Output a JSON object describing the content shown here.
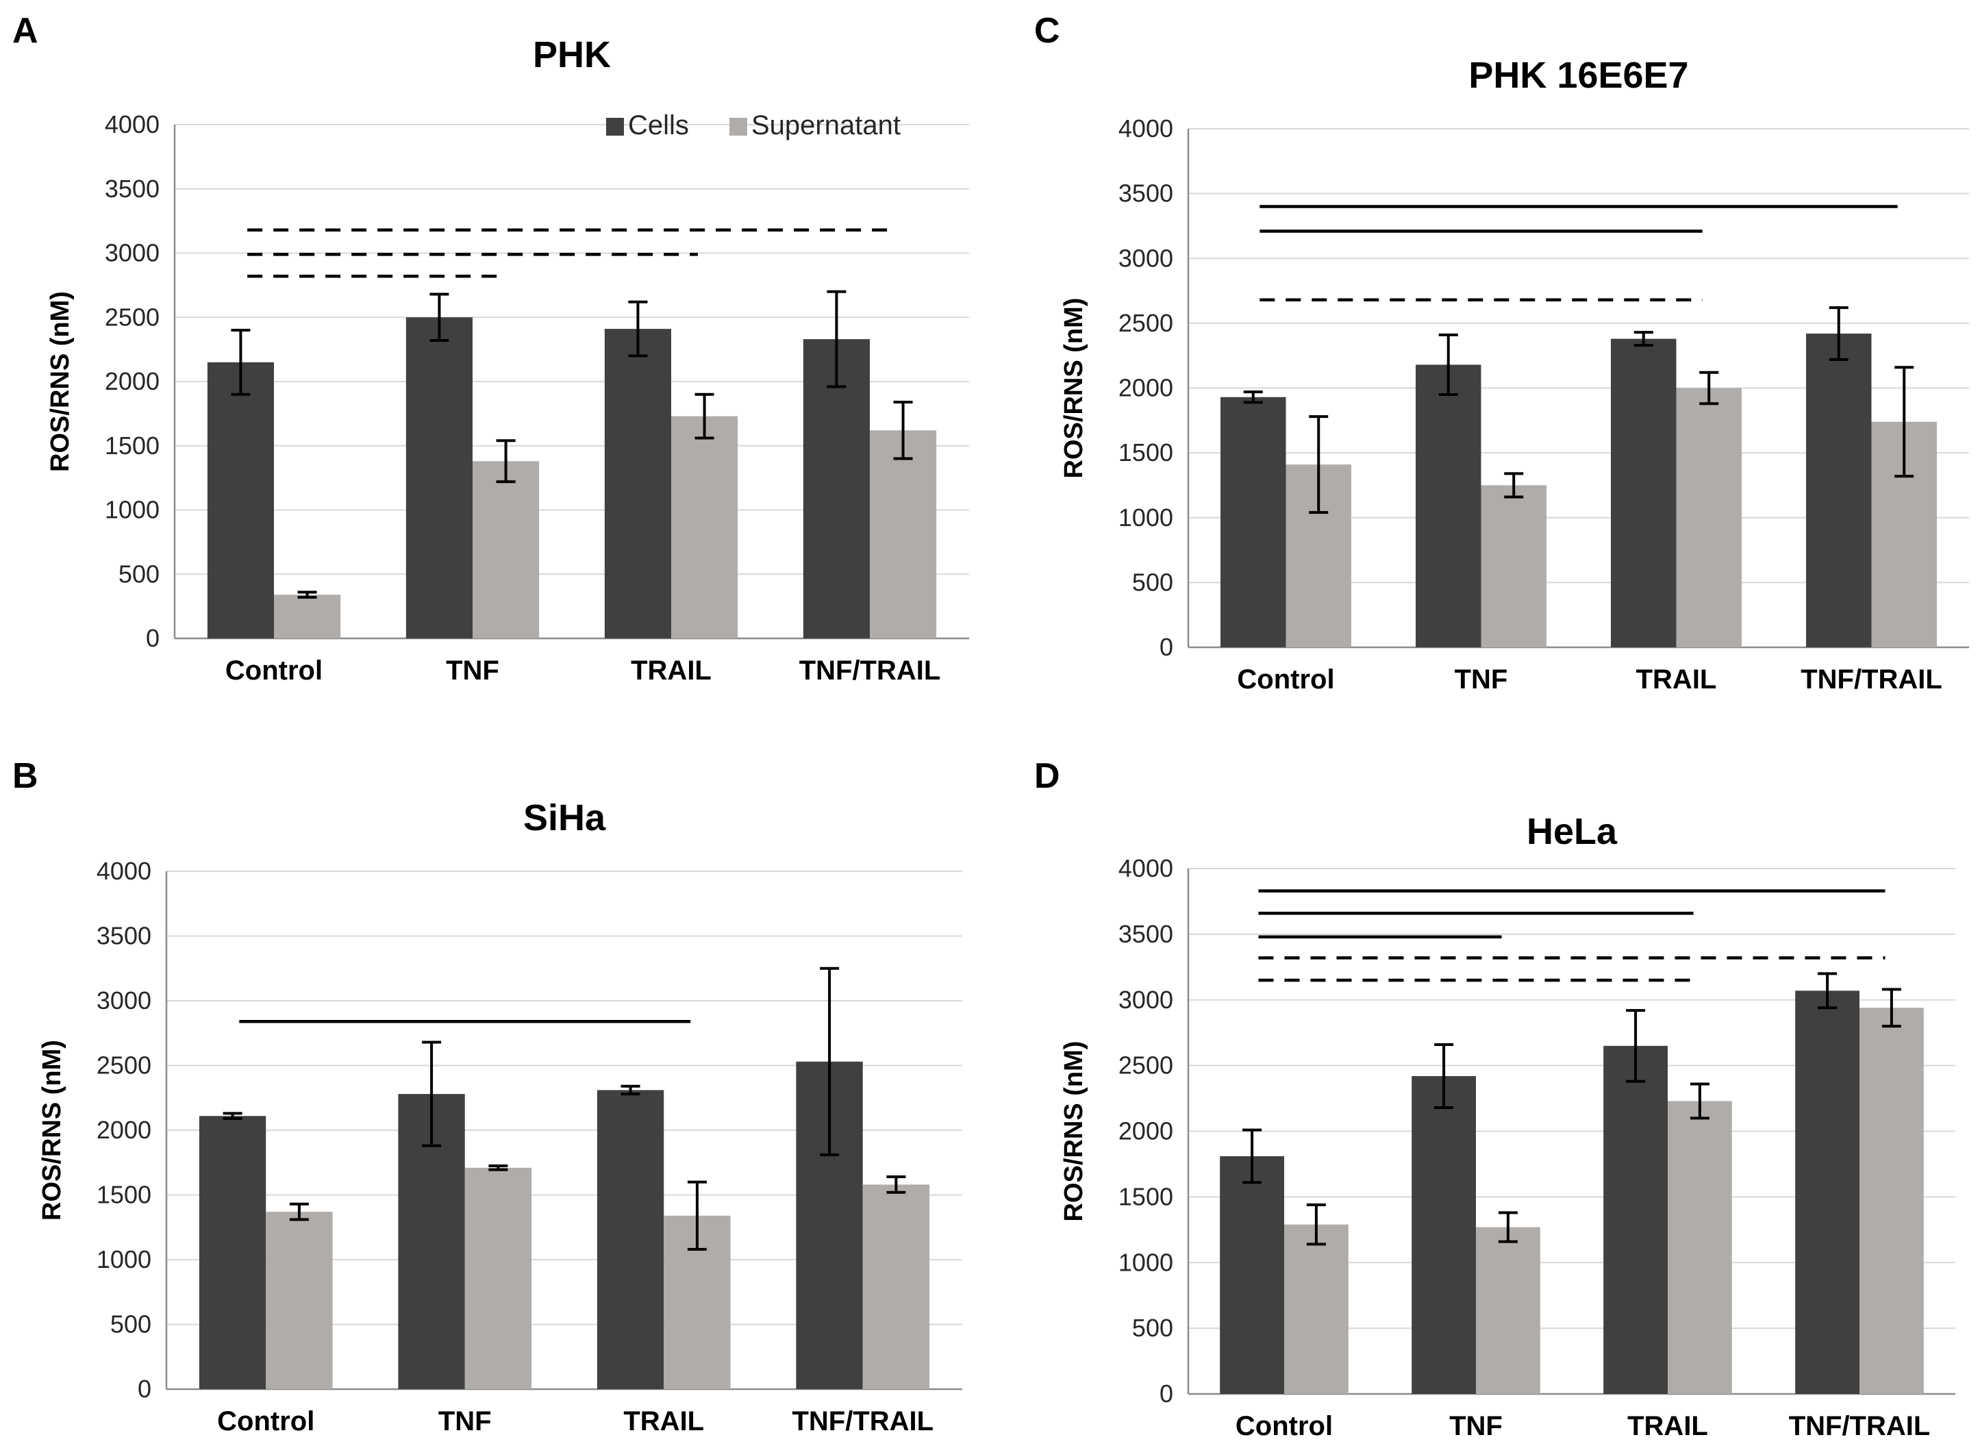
{
  "colors": {
    "cells": "#404040",
    "supernatant": "#b0aca9",
    "text": "#000000",
    "grid": "#d9d9d9"
  },
  "chart_data": [
    {
      "panel": "A",
      "type": "bar",
      "title": "PHK",
      "xlabel": "",
      "ylabel": "ROS/RNS (nM)",
      "ylim": [
        0,
        4000
      ],
      "yticks": [
        0,
        500,
        1000,
        1500,
        2000,
        2500,
        3000,
        3500,
        4000
      ],
      "grid": true,
      "legend": {
        "position": "top-right",
        "entries": [
          "Cells",
          "Supernatant"
        ]
      },
      "categories": [
        "Control",
        "TNF",
        "TRAIL",
        "TNF/TRAIL"
      ],
      "series": [
        {
          "name": "Cells",
          "values": [
            2150,
            2500,
            2410,
            2330
          ],
          "errors": [
            250,
            180,
            210,
            370
          ]
        },
        {
          "name": "Supernatant",
          "values": [
            340,
            1380,
            1730,
            1620
          ],
          "errors": [
            20,
            160,
            170,
            220
          ]
        }
      ],
      "significance": [
        {
          "style": "dashed",
          "y": 3180,
          "from": 0,
          "to": 3
        },
        {
          "style": "dashed",
          "y": 2990,
          "from": 0,
          "to": 2
        },
        {
          "style": "dashed",
          "y": 2820,
          "from": 0,
          "to": 1
        }
      ]
    },
    {
      "panel": "C",
      "type": "bar",
      "title": "PHK 16E6E7",
      "xlabel": "",
      "ylabel": "ROS/RNS (nM)",
      "ylim": [
        0,
        4000
      ],
      "yticks": [
        0,
        500,
        1000,
        1500,
        2000,
        2500,
        3000,
        3500,
        4000
      ],
      "grid": true,
      "categories": [
        "Control",
        "TNF",
        "TRAIL",
        "TNF/TRAIL"
      ],
      "series": [
        {
          "name": "Cells",
          "values": [
            1930,
            2180,
            2380,
            2420
          ],
          "errors": [
            40,
            230,
            50,
            200
          ]
        },
        {
          "name": "Supernatant",
          "values": [
            1410,
            1250,
            2000,
            1740
          ],
          "errors": [
            370,
            90,
            120,
            420
          ]
        }
      ],
      "significance": [
        {
          "style": "solid",
          "y": 3400,
          "from": 0,
          "to": 3
        },
        {
          "style": "solid",
          "y": 3210,
          "from": 0,
          "to": 2
        },
        {
          "style": "dashed",
          "y": 2680,
          "from": 0,
          "to": 2
        }
      ]
    },
    {
      "panel": "B",
      "type": "bar",
      "title": "SiHa",
      "xlabel": "",
      "ylabel": "ROS/RNS (nM)",
      "ylim": [
        0,
        4000
      ],
      "yticks": [
        0,
        500,
        1000,
        1500,
        2000,
        2500,
        3000,
        3500,
        4000
      ],
      "grid": true,
      "categories": [
        "Control",
        "TNF",
        "TRAIL",
        "TNF/TRAIL"
      ],
      "series": [
        {
          "name": "Cells",
          "values": [
            2110,
            2280,
            2310,
            2530
          ],
          "errors": [
            20,
            400,
            30,
            720
          ]
        },
        {
          "name": "Supernatant",
          "values": [
            1370,
            1710,
            1340,
            1580
          ],
          "errors": [
            60,
            15,
            260,
            60
          ]
        }
      ],
      "significance": [
        {
          "style": "solid",
          "y": 2840,
          "from": 0,
          "to": 2
        }
      ]
    },
    {
      "panel": "D",
      "type": "bar",
      "title": "HeLa",
      "xlabel": "",
      "ylabel": "ROS/RNS (nM)",
      "ylim": [
        0,
        4000
      ],
      "yticks": [
        0,
        500,
        1000,
        1500,
        2000,
        2500,
        3000,
        3500,
        4000
      ],
      "grid": true,
      "categories": [
        "Control",
        "TNF",
        "TRAIL",
        "TNF/TRAIL"
      ],
      "series": [
        {
          "name": "Cells",
          "values": [
            1810,
            2420,
            2650,
            3070
          ],
          "errors": [
            200,
            240,
            270,
            130
          ]
        },
        {
          "name": "Supernatant",
          "values": [
            1290,
            1270,
            2230,
            2940
          ],
          "errors": [
            150,
            110,
            130,
            140
          ]
        }
      ],
      "significance": [
        {
          "style": "solid",
          "y": 3830,
          "from": 0,
          "to": 3
        },
        {
          "style": "solid",
          "y": 3660,
          "from": 0,
          "to": 2
        },
        {
          "style": "solid",
          "y": 3480,
          "from": 0,
          "to": 1
        },
        {
          "style": "dashed",
          "y": 3320,
          "from": 0,
          "to": 3
        },
        {
          "style": "dashed",
          "y": 3150,
          "from": 0,
          "to": 2
        }
      ]
    }
  ]
}
